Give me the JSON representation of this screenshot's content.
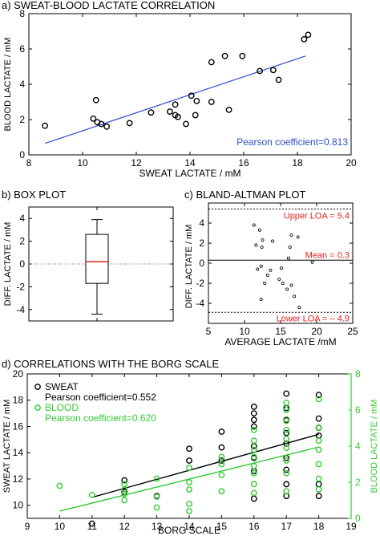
{
  "chart_data": [
    {
      "type": "scatter",
      "panel_label": "a)",
      "title": "SWEAT-BLOOD LACTATE CORRELATION",
      "xlabel": "SWEAT LACTATE / mM",
      "ylabel": "BLOOD LACTATE / mM",
      "xlim": [
        8,
        20
      ],
      "ylim": [
        0,
        8
      ],
      "xticks": [
        8,
        10,
        12,
        14,
        16,
        18,
        20
      ],
      "yticks": [
        0,
        2,
        4,
        6,
        8
      ],
      "annotation": "Pearson coefficient=0.813",
      "line_color": "#2a4fc9",
      "annotation_color": "#2a4fc9",
      "points": [
        [
          8.6,
          1.65
        ],
        [
          10.4,
          2.05
        ],
        [
          10.5,
          3.1
        ],
        [
          10.55,
          1.85
        ],
        [
          10.7,
          1.75
        ],
        [
          10.9,
          1.6
        ],
        [
          11.75,
          1.8
        ],
        [
          12.55,
          2.4
        ],
        [
          13.25,
          2.45
        ],
        [
          13.45,
          2.25
        ],
        [
          13.45,
          2.85
        ],
        [
          13.55,
          2.15
        ],
        [
          13.85,
          1.75
        ],
        [
          14.05,
          3.35
        ],
        [
          14.2,
          2.25
        ],
        [
          14.25,
          3.05
        ],
        [
          14.8,
          3.0
        ],
        [
          14.8,
          5.25
        ],
        [
          15.3,
          5.6
        ],
        [
          15.45,
          2.55
        ],
        [
          15.95,
          5.6
        ],
        [
          16.6,
          4.75
        ],
        [
          17.1,
          4.8
        ],
        [
          17.3,
          4.25
        ],
        [
          18.25,
          6.55
        ],
        [
          18.4,
          6.8
        ]
      ],
      "fit": [
        [
          8.6,
          0.65
        ],
        [
          18.3,
          5.6
        ]
      ]
    },
    {
      "type": "box",
      "panel_label": "b)",
      "title": "BOX PLOT",
      "ylabel": "DIFF.  LACTATE / mM",
      "ylim": [
        -5,
        5
      ],
      "yticks": [
        -4,
        -2,
        0,
        2,
        4
      ],
      "box": {
        "whisker_low": -4.4,
        "q1": -1.7,
        "median": 0.2,
        "q3": 2.6,
        "whisker_high": 3.9
      },
      "median_color": "#e02020",
      "zero_line": 0
    },
    {
      "type": "scatter",
      "panel_label": "c)",
      "title": "BLAND-ALTMAN PLOT",
      "xlabel": "AVERAGE LACTATE /mM",
      "ylabel": "DIFF.  LACTATE / mM",
      "xlim": [
        5,
        25
      ],
      "ylim": [
        -6,
        6
      ],
      "xticks": [
        5,
        10,
        15,
        20,
        25
      ],
      "yticks": [
        -4,
        -2,
        0,
        2,
        4
      ],
      "lines": [
        {
          "value": 5.4,
          "label": "Upper LOA = 5.4",
          "style": "dashed"
        },
        {
          "value": 0.3,
          "label": "Mean = 0.3",
          "style": "solid"
        },
        {
          "value": -4.9,
          "label": "Lower LOA = – 4.9",
          "style": "dashed"
        }
      ],
      "label_color": "#e02020",
      "points": [
        [
          11.3,
          3.8
        ],
        [
          12.1,
          3.3
        ],
        [
          11.6,
          1.8
        ],
        [
          12.5,
          2.3
        ],
        [
          12.4,
          1.6
        ],
        [
          13.9,
          2.2
        ],
        [
          16.5,
          2.8
        ],
        [
          17.4,
          2.6
        ],
        [
          16.3,
          1.6
        ],
        [
          16.1,
          0.5
        ],
        [
          19.4,
          0.1
        ],
        [
          12.3,
          -0.3
        ],
        [
          11.8,
          -0.6
        ],
        [
          13.6,
          -0.7
        ],
        [
          15.1,
          -0.5
        ],
        [
          13.2,
          -1.2
        ],
        [
          14.8,
          -1.6
        ],
        [
          12.8,
          -2.0
        ],
        [
          15.3,
          -2.0
        ],
        [
          16.5,
          -2.2
        ],
        [
          15.9,
          -2.6
        ],
        [
          12.3,
          -3.6
        ],
        [
          16.9,
          -3.3
        ],
        [
          17.6,
          -4.4
        ]
      ]
    },
    {
      "type": "scatter",
      "panel_label": "d)",
      "title": "CORRELATIONS WITH THE BORG SCALE",
      "xlabel": "BORG SCALE",
      "ylabel": "SWEAT LACTATE / mM",
      "y2label": "BLOOD LACTATE / mM",
      "xlim": [
        9,
        19
      ],
      "ylim": [
        9,
        20
      ],
      "y2lim": [
        0,
        8
      ],
      "xticks": [
        9,
        10,
        11,
        12,
        13,
        14,
        15,
        16,
        17,
        18,
        19
      ],
      "yticks": [
        10,
        12,
        14,
        16,
        18,
        20
      ],
      "y2ticks": [
        0,
        2,
        4,
        6,
        8
      ],
      "legend": "top-left",
      "series": [
        {
          "name": "SWEAT",
          "annotation": "Pearson coefficient=0.552",
          "color": "#000000",
          "axis": "left",
          "points": [
            [
              11,
              8.6
            ],
            [
              12,
              11.0
            ],
            [
              12,
              11.9
            ],
            [
              13,
              10.7
            ],
            [
              14,
              13.4
            ],
            [
              14,
              14.3
            ],
            [
              15,
              13.4
            ],
            [
              15,
              14.4
            ],
            [
              15,
              15.6
            ],
            [
              16,
              10.5
            ],
            [
              16,
              12.6
            ],
            [
              16,
              13.6
            ],
            [
              16,
              14.5
            ],
            [
              16,
              16.0
            ],
            [
              16,
              16.5
            ],
            [
              16,
              17.0
            ],
            [
              16,
              17.5
            ],
            [
              17,
              10.7
            ],
            [
              17,
              11.6
            ],
            [
              17,
              12.7
            ],
            [
              17,
              13.6
            ],
            [
              17,
              14.7
            ],
            [
              17,
              15.5
            ],
            [
              17,
              16.5
            ],
            [
              17,
              17.4
            ],
            [
              17,
              18.5
            ],
            [
              18,
              10.7
            ],
            [
              18,
              11.6
            ],
            [
              18,
              15.3
            ],
            [
              18,
              15.9
            ],
            [
              18,
              16.6
            ],
            [
              18,
              18.4
            ]
          ],
          "fit": [
            [
              11,
              10.6
            ],
            [
              18,
              15.4
            ]
          ]
        },
        {
          "name": "BLOOD",
          "annotation": "Pearson coefficient=0.620",
          "color": "#33cc33",
          "axis": "right",
          "points": [
            [
              10,
              1.8
            ],
            [
              11,
              1.3
            ],
            [
              12,
              1.0
            ],
            [
              12,
              1.35
            ],
            [
              12,
              1.6
            ],
            [
              12,
              1.9
            ],
            [
              13,
              0.6
            ],
            [
              13,
              1.2
            ],
            [
              13,
              2.2
            ],
            [
              14,
              0.4
            ],
            [
              14,
              0.8
            ],
            [
              14,
              1.6
            ],
            [
              14,
              2.0
            ],
            [
              14,
              2.8
            ],
            [
              15,
              1.5
            ],
            [
              15,
              2.4
            ],
            [
              15,
              3.0
            ],
            [
              15,
              3.4
            ],
            [
              16,
              1.4
            ],
            [
              16,
              1.9
            ],
            [
              16,
              2.5
            ],
            [
              16,
              2.9
            ],
            [
              16,
              3.4
            ],
            [
              16,
              3.8
            ],
            [
              16,
              4.3
            ],
            [
              16,
              4.9
            ],
            [
              17,
              1.5
            ],
            [
              17,
              2.5
            ],
            [
              17,
              3.2
            ],
            [
              17,
              3.9
            ],
            [
              17,
              4.4
            ],
            [
              17,
              4.9
            ],
            [
              17,
              5.4
            ],
            [
              17,
              6.0
            ],
            [
              17,
              6.4
            ],
            [
              18,
              1.6
            ],
            [
              18,
              2.2
            ],
            [
              18,
              3.0
            ],
            [
              18,
              3.8
            ],
            [
              18,
              4.3
            ],
            [
              18,
              5.0
            ],
            [
              18,
              6.6
            ]
          ],
          "fit": [
            [
              10,
              0.4
            ],
            [
              18,
              3.95
            ]
          ]
        }
      ]
    }
  ]
}
